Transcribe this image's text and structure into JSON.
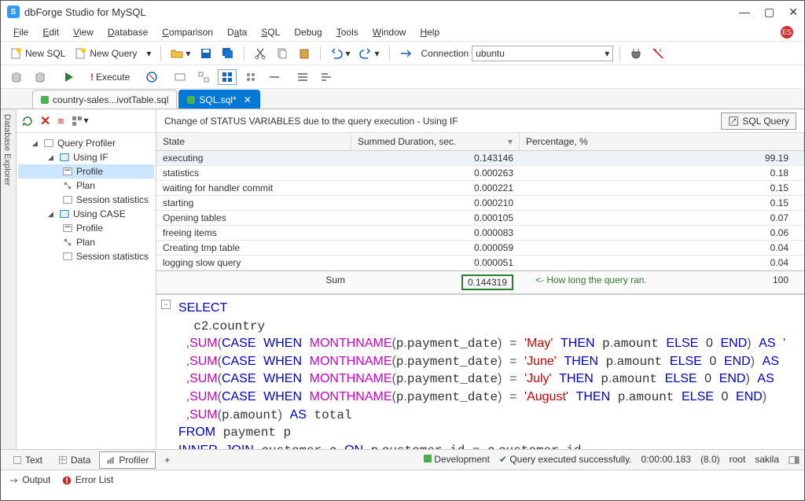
{
  "window": {
    "title": "dbForge Studio for MySQL"
  },
  "menu": [
    "File",
    "Edit",
    "View",
    "Database",
    "Comparison",
    "Data",
    "SQL",
    "Debug",
    "Tools",
    "Window",
    "Help"
  ],
  "toolbar1": {
    "new_sql": "New SQL",
    "new_query": "New Query",
    "connection_label": "Connection",
    "connection_value": "ubuntu"
  },
  "toolbar2": {
    "execute": "Execute"
  },
  "tabs": [
    {
      "label": "country-sales...ivotTable.sql",
      "active": false
    },
    {
      "label": "SQL.sql*",
      "active": true
    }
  ],
  "side_rail": "Database Explorer",
  "tree": {
    "root": "Query Profiler",
    "g1": "Using IF",
    "g1_items": [
      "Profile",
      "Plan",
      "Session statistics"
    ],
    "g2": "Using CASE",
    "g2_items": [
      "Profile",
      "Plan",
      "Session statistics"
    ]
  },
  "profile": {
    "header": "Change of STATUS VARIABLES due to the query execution - Using IF",
    "sql_query_btn": "SQL Query",
    "columns": {
      "state": "State",
      "duration": "Summed Duration, sec.",
      "pct": "Percentage, %"
    },
    "rows": [
      {
        "state": "executing",
        "dur": "0.143146",
        "pct": "99.19"
      },
      {
        "state": "statistics",
        "dur": "0.000263",
        "pct": "0.18"
      },
      {
        "state": "waiting for handler commit",
        "dur": "0.000221",
        "pct": "0.15"
      },
      {
        "state": "starting",
        "dur": "0.000210",
        "pct": "0.15"
      },
      {
        "state": "Opening tables",
        "dur": "0.000105",
        "pct": "0.07"
      },
      {
        "state": "freeing items",
        "dur": "0.000083",
        "pct": "0.06"
      },
      {
        "state": "Creating tmp table",
        "dur": "0.000059",
        "pct": "0.04"
      },
      {
        "state": "logging slow query",
        "dur": "0.000051",
        "pct": "0.04"
      }
    ],
    "sum_label": "Sum",
    "sum_dur": "0.144319",
    "sum_pct": "100",
    "annotation": "<- How long the query ran."
  },
  "bottom": {
    "tabs": [
      "Text",
      "Data",
      "Profiler"
    ],
    "dev": "Development",
    "status": "Query executed successfully.",
    "time": "0:00:00.183",
    "version": "(8.0)",
    "user": "root",
    "db": "sakila"
  },
  "output": {
    "output": "Output",
    "error": "Error List"
  },
  "colors": {
    "kw": "#0000cc",
    "fn": "#cc00cc",
    "str": "#cc0000",
    "accent": "#0078d7",
    "green": "#2e7d32"
  }
}
